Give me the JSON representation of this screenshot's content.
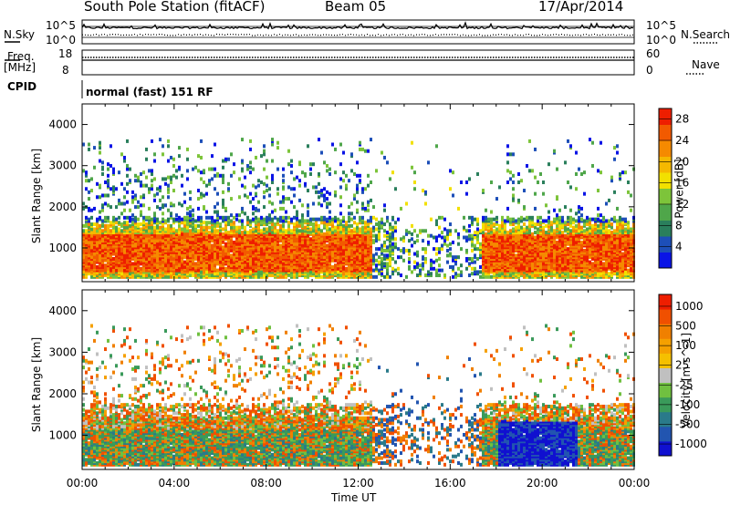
{
  "header": {
    "title": "South Pole Station (fitACF)",
    "beam": "Beam 05",
    "date": "17/Apr/2014"
  },
  "top_panel": {
    "nsky_label": "N.Sky",
    "nsearch_label": "N.Search",
    "left_ticks": [
      "10^5",
      "10^0"
    ],
    "right_ticks": [
      "10^5",
      "10^0"
    ]
  },
  "freq_panel": {
    "freq_label": "Freq.",
    "freq_unit": "[MHz]",
    "nave_label": "Nave",
    "left_ticks": [
      "18",
      "8"
    ],
    "right_ticks": [
      "60",
      "0"
    ],
    "freq_value_mhz": 12.0,
    "nave_value": 22
  },
  "cpid": {
    "label": "CPID",
    "value": "normal (fast) 151 RF"
  },
  "chart_data": [
    {
      "type": "heatmap",
      "name": "power-panel",
      "ylabel": "Slant Range [km]",
      "ylim": [
        180,
        4500
      ],
      "yticks": [
        1000,
        2000,
        3000,
        4000
      ],
      "xlim_hours": [
        0,
        24
      ],
      "colorbar": {
        "label": "Power [dB]",
        "ticks": [
          4,
          8,
          12,
          16,
          20,
          24,
          28
        ],
        "range": [
          0,
          30
        ],
        "colors": [
          "#0a14e6",
          "#1d4fb8",
          "#2a7f5c",
          "#4fa64a",
          "#7dc43a",
          "#f2e000",
          "#f5b800",
          "#f58a00",
          "#f25a00",
          "#ee1e00"
        ]
      }
    },
    {
      "type": "heatmap",
      "name": "velocity-panel",
      "ylabel": "Slant Range [km]",
      "ylim": [
        180,
        4500
      ],
      "yticks": [
        1000,
        2000,
        3000,
        4000
      ],
      "xlim_hours": [
        0,
        24
      ],
      "colorbar": {
        "label": "Velocity  [m s^-1]",
        "ticks": [
          "1000",
          "500",
          "100",
          "25",
          "-25",
          "-100",
          "-500",
          "-1000"
        ],
        "colors": [
          "#1010d0",
          "#2255b0",
          "#2a7a8a",
          "#3a9a5a",
          "#70c040",
          "#c0c0c0",
          "#f5c000",
          "#f5a000",
          "#f08000",
          "#f05000",
          "#ee1e00"
        ]
      }
    }
  ],
  "x_axis": {
    "label": "Time UT",
    "ticks": [
      "00:00",
      "04:00",
      "08:00",
      "12:00",
      "16:00",
      "20:00",
      "00:00"
    ]
  }
}
